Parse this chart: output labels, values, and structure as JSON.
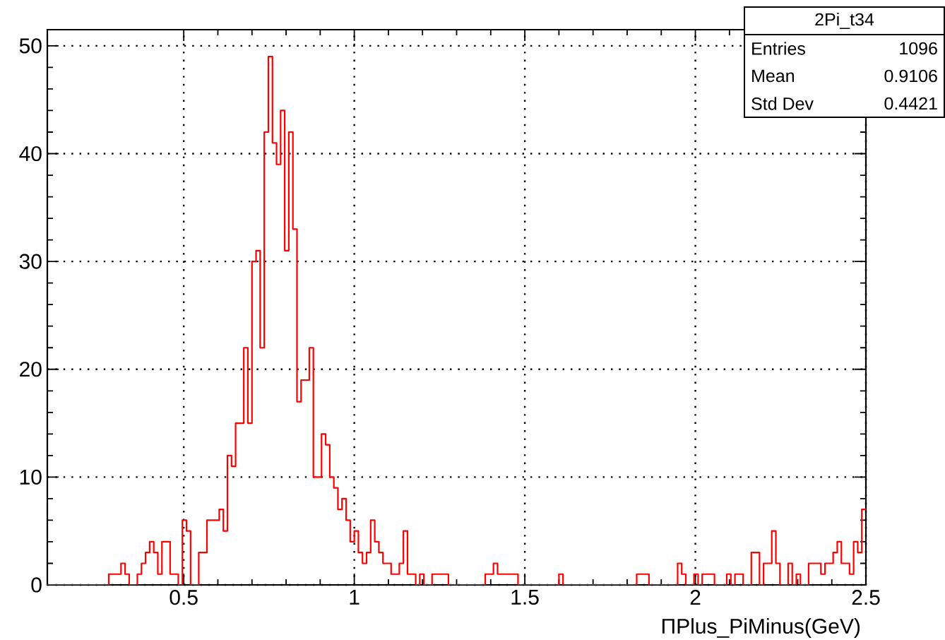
{
  "chart_data": {
    "type": "histogram",
    "xlabel": "ΠPlus_PiMinus(GeV)",
    "color": "#ff0000",
    "bins": [
      0.1,
      0.112,
      0.124,
      0.136,
      0.148,
      0.16,
      0.172,
      0.184,
      0.196,
      0.208,
      0.22,
      0.232,
      0.244,
      0.256,
      0.268,
      0.28,
      0.292,
      0.304,
      0.316,
      0.328,
      0.34,
      0.352,
      0.364,
      0.376,
      0.388,
      0.4,
      0.412,
      0.424,
      0.436,
      0.448,
      0.46,
      0.472,
      0.484,
      0.496,
      0.508,
      0.52,
      0.532,
      0.544,
      0.556,
      0.568,
      0.58,
      0.592,
      0.604,
      0.616,
      0.628,
      0.64,
      0.652,
      0.664,
      0.676,
      0.688,
      0.7,
      0.712,
      0.724,
      0.736,
      0.748,
      0.76,
      0.772,
      0.784,
      0.796,
      0.808,
      0.82,
      0.832,
      0.844,
      0.856,
      0.868,
      0.88,
      0.892,
      0.904,
      0.916,
      0.928,
      0.94,
      0.952,
      0.964,
      0.976,
      0.988,
      1.0,
      1.012,
      1.024,
      1.036,
      1.048,
      1.06,
      1.072,
      1.084,
      1.096,
      1.108,
      1.12,
      1.132,
      1.144,
      1.156,
      1.168,
      1.18,
      1.192,
      1.204,
      1.216,
      1.228,
      1.24,
      1.252,
      1.264,
      1.276,
      1.288,
      1.3,
      1.312,
      1.324,
      1.336,
      1.348,
      1.36,
      1.372,
      1.384,
      1.396,
      1.408,
      1.42,
      1.432,
      1.444,
      1.456,
      1.468,
      1.48,
      1.492,
      1.504,
      1.516,
      1.528,
      1.54,
      1.552,
      1.564,
      1.576,
      1.588,
      1.6,
      1.612,
      1.624,
      1.636,
      1.648,
      1.66,
      1.672,
      1.684,
      1.696,
      1.708,
      1.72,
      1.732,
      1.744,
      1.756,
      1.768,
      1.78,
      1.792,
      1.804,
      1.816,
      1.828,
      1.84,
      1.852,
      1.864,
      1.876,
      1.888,
      1.9,
      1.912,
      1.924,
      1.936,
      1.948,
      1.96,
      1.972,
      1.984,
      1.996,
      2.008,
      2.02,
      2.032,
      2.044,
      2.056,
      2.068,
      2.08,
      2.092,
      2.104,
      2.116,
      2.128,
      2.14,
      2.152,
      2.164,
      2.176,
      2.188,
      2.2,
      2.212,
      2.224,
      2.236,
      2.248,
      2.26,
      2.272,
      2.284,
      2.296,
      2.308,
      2.32,
      2.332,
      2.344,
      2.356,
      2.368,
      2.38,
      2.392,
      2.404,
      2.416,
      2.428,
      2.44,
      2.452,
      2.464,
      2.476,
      2.488,
      2.5
    ],
    "values": [
      0,
      0,
      0,
      0,
      0,
      0,
      0,
      0,
      0,
      0,
      0,
      0,
      0,
      0,
      0,
      1,
      1,
      1,
      2,
      1,
      0,
      0,
      1,
      2,
      3,
      4,
      3,
      1,
      4,
      4,
      1,
      1,
      0,
      6,
      5,
      0,
      0,
      3,
      3,
      6,
      6,
      6,
      7,
      5,
      12,
      11,
      15,
      15,
      22,
      15,
      30,
      31,
      22,
      42,
      49,
      41,
      39,
      44,
      31,
      42,
      33,
      17,
      19,
      19,
      22,
      10,
      10,
      14,
      13,
      10,
      9,
      7,
      8,
      6,
      4,
      5,
      3,
      2,
      3,
      6,
      4,
      3,
      2,
      2,
      1,
      1,
      2,
      5,
      1,
      1,
      0,
      1,
      0,
      0,
      1,
      1,
      1,
      1,
      0,
      0,
      0,
      0,
      0,
      0,
      0,
      0,
      0,
      1,
      1,
      2,
      1,
      1,
      1,
      1,
      1,
      0,
      0,
      0,
      0,
      0,
      0,
      0,
      0,
      0,
      0,
      1,
      0,
      0,
      0,
      0,
      0,
      0,
      0,
      0,
      0,
      0,
      0,
      0,
      0,
      0,
      0,
      0,
      0,
      0,
      1,
      1,
      1,
      0,
      0,
      0,
      0,
      0,
      0,
      0,
      2,
      1,
      0,
      0,
      1,
      0,
      1,
      1,
      1,
      0,
      0,
      0,
      1,
      0,
      1,
      1,
      0,
      0,
      3,
      3,
      0,
      2,
      2,
      5,
      2,
      0,
      0,
      2,
      0,
      1,
      0,
      0,
      2,
      2,
      2,
      1,
      2,
      2,
      3,
      4,
      2,
      2,
      1,
      4,
      3,
      7
    ],
    "xlim": [
      0.1,
      2.5
    ],
    "ylim": [
      0,
      51.5
    ],
    "xticks": [
      0.5,
      1,
      1.5,
      2,
      2.5
    ],
    "yticks": [
      0,
      10,
      20,
      30,
      40,
      50
    ],
    "grid": true,
    "annotations": [
      "2Pi_t34",
      "Entries",
      "1096",
      "Mean",
      "0.9106",
      "Std Dev",
      "0.4421"
    ]
  }
}
